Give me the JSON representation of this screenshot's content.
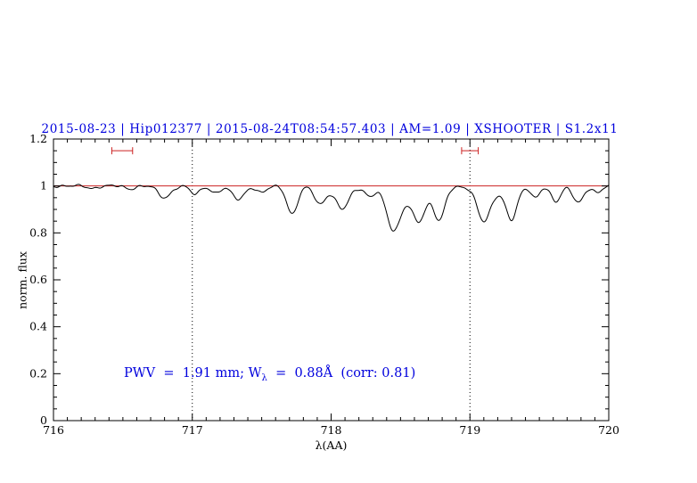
{
  "title": {
    "text": "2015-08-23 | Hip012377 | 2015-08-24T08:54:57.403 | AM=1.09 | XSHOOTER | S1.2x11",
    "color": "#0000dd"
  },
  "annotation": {
    "prefix": "PWV  =  1.91 mm; W",
    "sub": "λ",
    "suffix": "  =  0.88Å  (corr: 0.81)",
    "color": "#0000dd"
  },
  "chart_data": {
    "type": "line",
    "title": "2015-08-23 | Hip012377 | 2015-08-24T08:54:57.403 | AM=1.09 | XSHOOTER | S1.2x11",
    "xlabel": "λ(AA)",
    "ylabel": "norm. flux",
    "xlim": [
      716,
      720
    ],
    "ylim": [
      0,
      1.2
    ],
    "x_major_ticks": [
      716,
      717,
      718,
      719,
      720
    ],
    "x_tick_labels": [
      "716",
      "717",
      "718",
      "719",
      "720"
    ],
    "y_major_ticks": [
      0,
      0.2,
      0.4,
      0.6,
      0.8,
      1,
      1.2
    ],
    "y_tick_labels": [
      "0",
      "0.2",
      "0.4",
      "0.6",
      "0.8",
      "1",
      "1.2"
    ],
    "x_minor_step": 0.1,
    "y_minor_step": 0.05,
    "grid": false,
    "legend": null,
    "dotted_vlines": [
      717,
      719
    ],
    "continuum_line": {
      "y": 1.0,
      "color": "#cc2222"
    },
    "range_markers": [
      {
        "x1": 716.42,
        "x2": 716.57,
        "y": 1.15
      },
      {
        "x1": 718.94,
        "x2": 719.06,
        "y": 1.15
      }
    ],
    "marker_color": "#cc2222",
    "line_color": "#000000",
    "continuum": 1.0,
    "noise_amplitude": 0.0035,
    "absorption_lines_format": [
      "center_AA",
      "depth",
      "sigma_AA"
    ],
    "absorption_lines": [
      [
        716.28,
        0.01,
        0.035
      ],
      [
        716.55,
        0.012,
        0.035
      ],
      [
        716.8,
        0.05,
        0.045
      ],
      [
        717.02,
        0.035,
        0.035
      ],
      [
        717.17,
        0.03,
        0.035
      ],
      [
        717.33,
        0.055,
        0.045
      ],
      [
        717.5,
        0.03,
        0.035
      ],
      [
        717.72,
        0.12,
        0.038
      ],
      [
        717.92,
        0.065,
        0.038
      ],
      [
        718.05,
        0.02,
        0.12
      ],
      [
        718.08,
        0.08,
        0.042
      ],
      [
        718.28,
        0.04,
        0.03
      ],
      [
        718.45,
        0.165,
        0.05
      ],
      [
        718.6,
        0.04,
        0.15
      ],
      [
        718.63,
        0.115,
        0.045
      ],
      [
        718.78,
        0.125,
        0.038
      ],
      [
        719.1,
        0.13,
        0.045
      ],
      [
        719.2,
        0.03,
        0.12
      ],
      [
        719.3,
        0.12,
        0.038
      ],
      [
        719.47,
        0.05,
        0.03
      ],
      [
        719.62,
        0.065,
        0.035
      ],
      [
        719.78,
        0.07,
        0.038
      ],
      [
        719.92,
        0.03,
        0.03
      ]
    ]
  }
}
